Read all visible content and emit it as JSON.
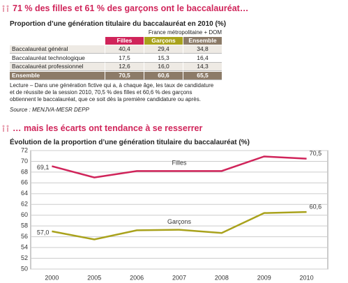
{
  "header": {
    "title": "71 % des filles et 61 % des garçons ont le baccalauréat…"
  },
  "table": {
    "title": "Proportion d’une génération titulaire du baccalauréat en 2010 (%)",
    "scope": "France métropolitaine + DOM",
    "columns": [
      "Filles",
      "Garçons",
      "Ensemble"
    ],
    "rows": [
      [
        "Baccalauréat général",
        "40,4",
        "29,4",
        "34,8"
      ],
      [
        "Baccalauréat technologique",
        "17,5",
        "15,3",
        "16,4"
      ],
      [
        "Baccalauréat professionnel",
        "12,6",
        "16,0",
        "14,3"
      ],
      [
        "Ensemble",
        "70,5",
        "60,6",
        "65,5"
      ]
    ],
    "note": "Lecture – Dans une génération fictive qui a, à chaque âge, les taux de candidature et de réussite de la session 2010, 70,5 % des filles et 60,6 % des garçons obtiennent le baccalauréat, que ce soit dès la première candidature ou après.",
    "source": "Source : MENJVA-MESR DEPP"
  },
  "section2": {
    "title": "… mais les écarts ont tendance à se resserrer"
  },
  "chart_data": {
    "type": "line",
    "title": "Évolution de la proportion d’une génération titulaire du baccalauréat (%)",
    "categories": [
      "2000",
      "2005",
      "2006",
      "2007",
      "2008",
      "2009",
      "2010"
    ],
    "series": [
      {
        "name": "Filles",
        "color": "#d0245a",
        "values": [
          69.1,
          67.0,
          68.2,
          68.2,
          68.2,
          70.9,
          70.5
        ],
        "value_labels": [
          "69,1",
          null,
          null,
          null,
          null,
          null,
          "70,5"
        ]
      },
      {
        "name": "Garçons",
        "color": "#a9a21c",
        "values": [
          57.0,
          55.5,
          57.2,
          57.3,
          56.7,
          60.4,
          60.6
        ],
        "value_labels": [
          "57,0",
          null,
          null,
          null,
          null,
          null,
          "60,6"
        ]
      }
    ],
    "ylim": [
      50,
      72
    ],
    "yticks": [
      50,
      52,
      54,
      56,
      58,
      60,
      62,
      64,
      66,
      68,
      70,
      72
    ],
    "grid": true
  }
}
